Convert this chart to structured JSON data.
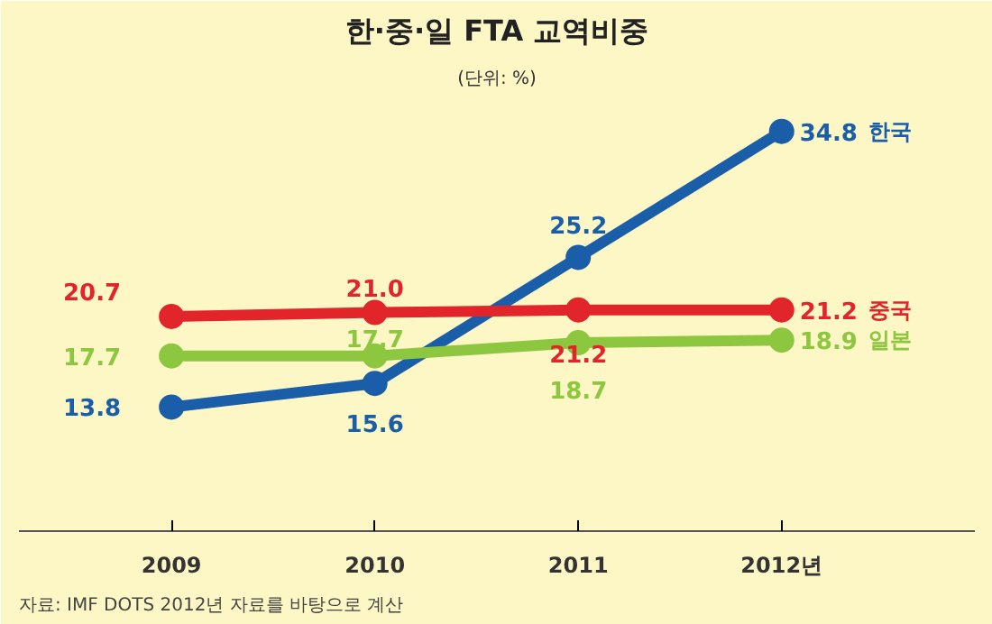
{
  "chart_data": {
    "type": "line",
    "title": "한·중·일 FTA 교역비중",
    "subtitle": "(단위: %)",
    "categories": [
      "2009",
      "2010",
      "2011",
      "2012년"
    ],
    "series": [
      {
        "name": "한국",
        "color": "#1a5da8",
        "values": [
          13.8,
          15.6,
          25.2,
          34.8
        ],
        "value_labels": [
          "13.8",
          "15.6",
          "25.2",
          "34.8"
        ]
      },
      {
        "name": "중국",
        "color": "#e2252b",
        "values": [
          20.7,
          21.0,
          21.2,
          21.2
        ],
        "value_labels": [
          "20.7",
          "21.0",
          "21.2",
          "21.2"
        ]
      },
      {
        "name": "일본",
        "color": "#8dc63f",
        "values": [
          17.7,
          17.7,
          18.7,
          18.9
        ],
        "value_labels": [
          "17.7",
          "17.7",
          "18.7",
          "18.9"
        ]
      }
    ],
    "grid": false,
    "marker": "circle",
    "line_style": "solid",
    "tick_labels": "x",
    "annotations": [
      "자료: IMF DOTS 2012년 자료를 바탕으로 계산"
    ]
  }
}
